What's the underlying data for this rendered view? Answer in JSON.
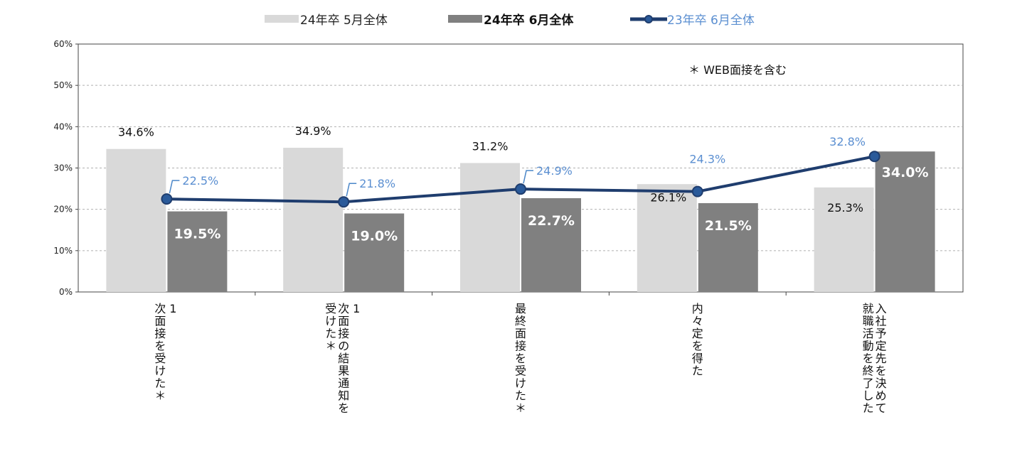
{
  "chart_data": {
    "type": "bar",
    "ylim": [
      0,
      60
    ],
    "yticks": [
      "0%",
      "10%",
      "20%",
      "30%",
      "40%",
      "50%",
      "60%"
    ],
    "categories": [
      [
        "1",
        "次面接を受けた＊"
      ],
      [
        "1",
        "次面接の結果通知を",
        "受けた＊"
      ],
      [
        "最終面接を受けた＊"
      ],
      [
        "内々定を得た"
      ],
      [
        "入社予定先を決めて",
        "就職活動を終了した"
      ]
    ],
    "series": [
      {
        "name": "24年卒 5月全体",
        "type": "bar",
        "color": "#d9d9d9",
        "values": [
          34.6,
          34.9,
          31.2,
          26.1,
          25.3
        ],
        "labels": [
          "34.6%",
          "34.9%",
          "31.2%",
          "26.1%",
          "25.3%"
        ]
      },
      {
        "name": "24年卒 6月全体",
        "type": "bar",
        "color": "#808080",
        "values": [
          19.5,
          19.0,
          22.7,
          21.5,
          34.0
        ],
        "labels": [
          "19.5%",
          "19.0%",
          "22.7%",
          "21.5%",
          "34.0%"
        ]
      },
      {
        "name": "23年卒 6月全体",
        "type": "line",
        "color": "#1f3d6e",
        "values": [
          22.5,
          21.8,
          24.9,
          24.3,
          32.8
        ],
        "labels": [
          "22.5%",
          "21.8%",
          "24.9%",
          "24.3%",
          "32.8%"
        ]
      }
    ],
    "legend_position": "top",
    "grid": true,
    "note": "＊ WEB面接を含む"
  }
}
